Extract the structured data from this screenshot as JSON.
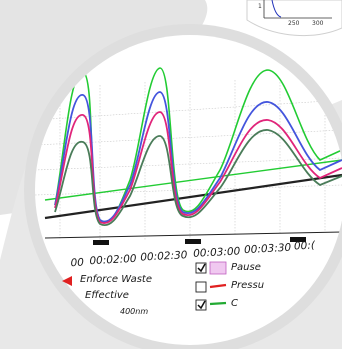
{
  "inset_chart": {
    "x_ticks": [
      "250",
      "300"
    ],
    "y_tick_fragment": "1"
  },
  "chart": {
    "x_axis_ticks": [
      "00",
      "00:02:00",
      "00:02:30",
      "00:03:00",
      "00:03:30",
      "00:("
    ],
    "colors": {
      "green": "#22cc33",
      "blue": "#4455dd",
      "magenta": "#e0257a",
      "dark_green": "#4a7c59",
      "red": "#e02020",
      "pause_fill": "#f0c8f0"
    }
  },
  "legend": {
    "enforce_waste": "Enforce Waste",
    "effective": "Effective",
    "nm_fragment": "400nm",
    "pause": "Pause",
    "pressure": "Pressu",
    "third_fragment": "C"
  },
  "chart_data": {
    "type": "line",
    "title": "",
    "xlabel": "",
    "ylabel": "",
    "x": [
      "00",
      "00:02:00",
      "00:02:30",
      "00:03:00",
      "00:03:30",
      "00:("
    ],
    "series": []
  }
}
